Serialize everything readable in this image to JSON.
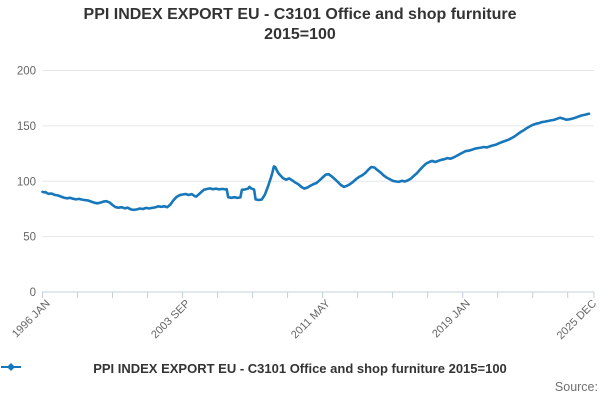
{
  "header": {
    "title_line1": "PPI INDEX EXPORT EU - C3101 Office and shop furniture",
    "title_line2": "2015=100"
  },
  "legend": {
    "label": "PPI INDEX EXPORT EU - C3101 Office and shop furniture 2015=100",
    "marker": "line-with-diamond-marker"
  },
  "footer": {
    "source_label": "Source:"
  },
  "colors": {
    "series": "#1777bb",
    "grid": "#e6e6e6",
    "axis": "#c3cfdd",
    "tick_text": "#666666",
    "title_text": "#333333",
    "legend_text": "#333333",
    "source_text": "#707070",
    "background": "#ffffff"
  },
  "chart_data": {
    "type": "line",
    "title": "PPI INDEX EXPORT EU - C3101 Office and shop furniture",
    "subtitle": "2015=100",
    "series_name": "PPI INDEX EXPORT EU - C3101 Office and shop furniture 2015=100",
    "frequency": "monthly",
    "x_start": "1996-01",
    "x_end": "2025-12",
    "xlim_months": [
      0,
      359
    ],
    "x_tick_labels": [
      {
        "month": 0,
        "label": "1996 JAN"
      },
      {
        "month": 92,
        "label": "2003 SEP"
      },
      {
        "month": 184,
        "label": "2011 MAY"
      },
      {
        "month": 276,
        "label": "2019 JAN"
      },
      {
        "month": 359,
        "label": "2025 DEC"
      }
    ],
    "minor_tick_interval_months": 23,
    "y_ticks": [
      0,
      50,
      100,
      150,
      200
    ],
    "ylim": [
      0,
      200
    ],
    "grid": "horizontal",
    "legend_position": "bottom",
    "points": [
      [
        0,
        90.5
      ],
      [
        1,
        90
      ],
      [
        2,
        90.2
      ],
      [
        3,
        89.2
      ],
      [
        4,
        88.7
      ],
      [
        6,
        88.9
      ],
      [
        8,
        87.7
      ],
      [
        10,
        87.2
      ],
      [
        12,
        86.2
      ],
      [
        14,
        85.2
      ],
      [
        16,
        84.6
      ],
      [
        18,
        85.1
      ],
      [
        20,
        84.2
      ],
      [
        22,
        83.6
      ],
      [
        24,
        84.1
      ],
      [
        26,
        83.4
      ],
      [
        28,
        83
      ],
      [
        30,
        82.6
      ],
      [
        32,
        81.6
      ],
      [
        34,
        80.6
      ],
      [
        36,
        80.1
      ],
      [
        38,
        80.6
      ],
      [
        40,
        81.6
      ],
      [
        42,
        82
      ],
      [
        44,
        80.9
      ],
      [
        46,
        78.6
      ],
      [
        48,
        76.6
      ],
      [
        50,
        76.1
      ],
      [
        52,
        76.6
      ],
      [
        54,
        75.6
      ],
      [
        56,
        76.1
      ],
      [
        58,
        74.6
      ],
      [
        60,
        74.1
      ],
      [
        62,
        74.6
      ],
      [
        64,
        75.4
      ],
      [
        66,
        74.9
      ],
      [
        68,
        75.9
      ],
      [
        70,
        75.4
      ],
      [
        72,
        75.9
      ],
      [
        74,
        76.4
      ],
      [
        76,
        77.4
      ],
      [
        78,
        76.9
      ],
      [
        80,
        77.4
      ],
      [
        82,
        76.6
      ],
      [
        84,
        79
      ],
      [
        86,
        82.8
      ],
      [
        88,
        85.8
      ],
      [
        90,
        87.4
      ],
      [
        92,
        88
      ],
      [
        94,
        88.5
      ],
      [
        96,
        87.6
      ],
      [
        98,
        88.4
      ],
      [
        100,
        86.6
      ],
      [
        101,
        86.1
      ],
      [
        102,
        87.4
      ],
      [
        104,
        89.8
      ],
      [
        106,
        92.3
      ],
      [
        108,
        93
      ],
      [
        110,
        93.5
      ],
      [
        112,
        92.8
      ],
      [
        114,
        93.4
      ],
      [
        116,
        92.6
      ],
      [
        118,
        93.1
      ],
      [
        120,
        92.6
      ],
      [
        121,
        92.8
      ],
      [
        122,
        85.6
      ],
      [
        124,
        85.1
      ],
      [
        126,
        85.6
      ],
      [
        128,
        85
      ],
      [
        130,
        85.4
      ],
      [
        131,
        92.3
      ],
      [
        133,
        92.6
      ],
      [
        135,
        93.4
      ],
      [
        136,
        94.9
      ],
      [
        137,
        93.6
      ],
      [
        138,
        93
      ],
      [
        139,
        92.5
      ],
      [
        140,
        83.6
      ],
      [
        142,
        83.1
      ],
      [
        144,
        83.4
      ],
      [
        146,
        87.8
      ],
      [
        148,
        94.8
      ],
      [
        150,
        102.8
      ],
      [
        151,
        107.8
      ],
      [
        152,
        113.4
      ],
      [
        153,
        112.6
      ],
      [
        154,
        109.6
      ],
      [
        155,
        107.2
      ],
      [
        156,
        105.6
      ],
      [
        158,
        102.8
      ],
      [
        160,
        101.4
      ],
      [
        162,
        102.6
      ],
      [
        164,
        100.9
      ],
      [
        166,
        98.9
      ],
      [
        168,
        97.4
      ],
      [
        170,
        94.9
      ],
      [
        172,
        93.4
      ],
      [
        174,
        94.4
      ],
      [
        176,
        95.9
      ],
      [
        178,
        97.4
      ],
      [
        180,
        98.4
      ],
      [
        182,
        100.9
      ],
      [
        184,
        103.4
      ],
      [
        186,
        105.9
      ],
      [
        188,
        106.4
      ],
      [
        190,
        104.4
      ],
      [
        192,
        101.9
      ],
      [
        194,
        99.4
      ],
      [
        196,
        96.6
      ],
      [
        198,
        94.9
      ],
      [
        200,
        95.9
      ],
      [
        202,
        97.4
      ],
      [
        204,
        99.4
      ],
      [
        206,
        101.9
      ],
      [
        208,
        103.9
      ],
      [
        210,
        105.4
      ],
      [
        212,
        107.4
      ],
      [
        214,
        110.4
      ],
      [
        216,
        112.9
      ],
      [
        218,
        112.4
      ],
      [
        220,
        110.1
      ],
      [
        222,
        108.1
      ],
      [
        224,
        105.4
      ],
      [
        226,
        103.4
      ],
      [
        228,
        101.9
      ],
      [
        230,
        100.4
      ],
      [
        232,
        99.9
      ],
      [
        234,
        99.4
      ],
      [
        236,
        100.4
      ],
      [
        238,
        99.8
      ],
      [
        240,
        100.8
      ],
      [
        242,
        102.4
      ],
      [
        244,
        104.9
      ],
      [
        246,
        107.4
      ],
      [
        248,
        110.4
      ],
      [
        250,
        113.4
      ],
      [
        252,
        115.9
      ],
      [
        254,
        117.4
      ],
      [
        256,
        118.4
      ],
      [
        258,
        117.4
      ],
      [
        260,
        118.4
      ],
      [
        262,
        119.4
      ],
      [
        264,
        119.9
      ],
      [
        266,
        120.9
      ],
      [
        268,
        120.4
      ],
      [
        270,
        121.4
      ],
      [
        272,
        122.9
      ],
      [
        274,
        124.4
      ],
      [
        276,
        125.9
      ],
      [
        278,
        127.2
      ],
      [
        280,
        127.6
      ],
      [
        282,
        128.4
      ],
      [
        284,
        129.4
      ],
      [
        286,
        129.9
      ],
      [
        288,
        130.4
      ],
      [
        290,
        130.9
      ],
      [
        292,
        130.6
      ],
      [
        294,
        131.6
      ],
      [
        296,
        132.4
      ],
      [
        298,
        133.1
      ],
      [
        300,
        134.4
      ],
      [
        302,
        135.4
      ],
      [
        304,
        136.4
      ],
      [
        306,
        137.4
      ],
      [
        308,
        138.9
      ],
      [
        310,
        140.4
      ],
      [
        312,
        142.4
      ],
      [
        314,
        144.4
      ],
      [
        316,
        145.9
      ],
      [
        318,
        147.9
      ],
      [
        320,
        149.4
      ],
      [
        322,
        150.9
      ],
      [
        324,
        151.9
      ],
      [
        326,
        152.4
      ],
      [
        328,
        153.4
      ],
      [
        330,
        153.9
      ],
      [
        332,
        154.4
      ],
      [
        334,
        154.9
      ],
      [
        336,
        155.4
      ],
      [
        338,
        156.4
      ],
      [
        340,
        157.4
      ],
      [
        342,
        156.6
      ],
      [
        344,
        155.6
      ],
      [
        346,
        155.9
      ],
      [
        348,
        156.6
      ],
      [
        350,
        157.4
      ],
      [
        352,
        158.4
      ],
      [
        354,
        159.4
      ],
      [
        356,
        159.9
      ],
      [
        358,
        160.6
      ],
      [
        359,
        161
      ]
    ]
  }
}
